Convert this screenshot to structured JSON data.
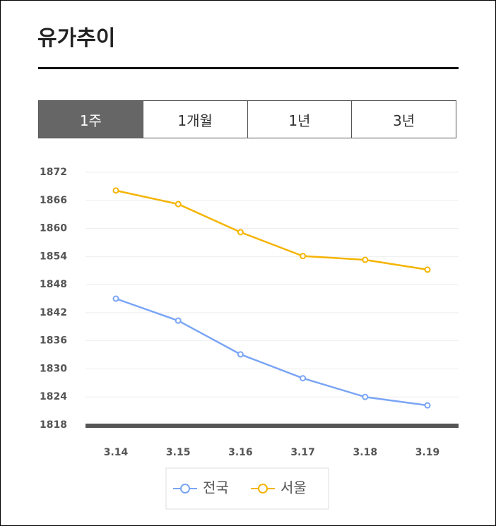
{
  "header": {
    "title": "유가추이"
  },
  "tabs": {
    "labels": [
      "1주",
      "1개월",
      "1년",
      "3년"
    ],
    "active": 0
  },
  "chart_data": {
    "type": "line",
    "categories": [
      "3.14",
      "3.15",
      "3.16",
      "3.17",
      "3.18",
      "3.19"
    ],
    "series": [
      {
        "name": "전국",
        "color": "#7aa5f5",
        "values": [
          1845.0,
          1840.3,
          1833.1,
          1828.0,
          1824.0,
          1822.2
        ]
      },
      {
        "name": "서울",
        "color": "#f5b400",
        "values": [
          1868.1,
          1865.2,
          1859.2,
          1854.1,
          1853.3,
          1851.2
        ]
      }
    ],
    "ylim": [
      1818,
      1872
    ],
    "yticks": [
      1818,
      1824,
      1830,
      1836,
      1842,
      1848,
      1854,
      1860,
      1866,
      1872
    ],
    "grid": true
  }
}
